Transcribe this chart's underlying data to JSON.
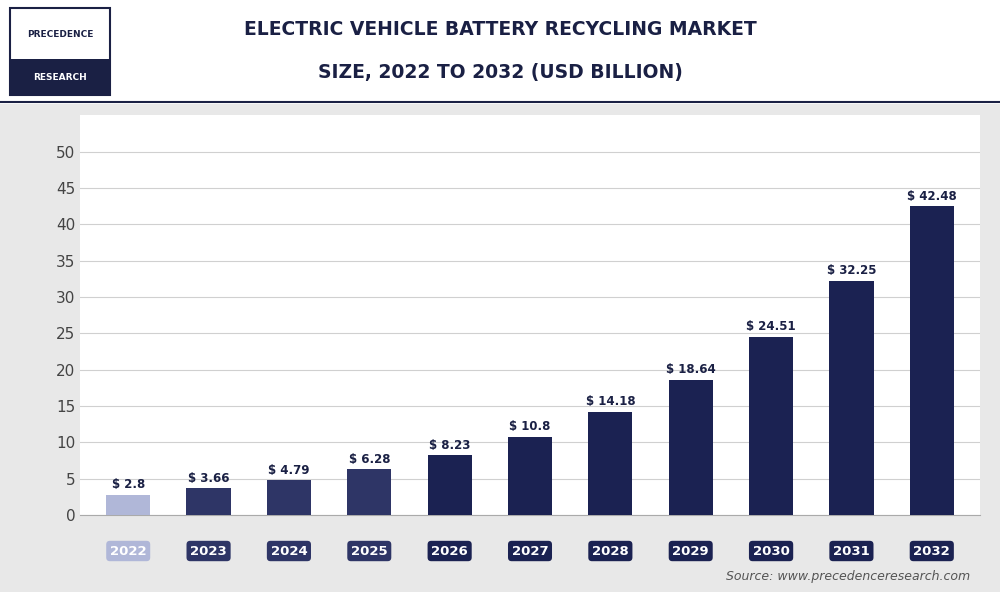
{
  "title_line1": "ELECTRIC VEHICLE BATTERY RECYCLING MARKET",
  "title_line2": "SIZE, 2022 TO 2032 (USD BILLION)",
  "categories": [
    "2022",
    "2023",
    "2024",
    "2025",
    "2026",
    "2027",
    "2028",
    "2029",
    "2030",
    "2031",
    "2032"
  ],
  "values": [
    2.8,
    3.66,
    4.79,
    6.28,
    8.23,
    10.8,
    14.18,
    18.64,
    24.51,
    32.25,
    42.48
  ],
  "labels": [
    "$ 2.8",
    "$ 3.66",
    "$ 4.79",
    "$ 6.28",
    "$ 8.23",
    "$ 10.8",
    "$ 14.18",
    "$ 18.64",
    "$ 24.51",
    "$ 32.25",
    "$ 42.48"
  ],
  "bar_colors": [
    "#b0b7d8",
    "#2e3566",
    "#2e3566",
    "#2e3566",
    "#1b2252",
    "#1b2252",
    "#1b2252",
    "#1b2252",
    "#1b2252",
    "#1b2252",
    "#1b2252"
  ],
  "tick_label_bg_colors": [
    "#b0b7d8",
    "#2e3566",
    "#2e3566",
    "#2e3566",
    "#1b2252",
    "#1b2252",
    "#1b2252",
    "#1b2252",
    "#1b2252",
    "#1b2252",
    "#1b2252"
  ],
  "ylim": [
    0,
    55
  ],
  "yticks": [
    0,
    5,
    10,
    15,
    20,
    25,
    30,
    35,
    40,
    45,
    50
  ],
  "source_text": "Source: www.precedenceresearch.com",
  "outer_bg": "#e8e8e8",
  "header_bg": "#ffffff",
  "plot_bg": "#ffffff",
  "grid_color": "#d0d0d0",
  "title_color": "#1a2044",
  "logo_text1": "PRECEDENCE",
  "logo_text2": "RESEARCH",
  "logo_border_color": "#1a2044",
  "header_line_color": "#1a2044",
  "label_fontsize": 8.5,
  "ytick_fontsize": 11,
  "xtick_fontsize": 9.5,
  "title_fontsize": 13.5
}
